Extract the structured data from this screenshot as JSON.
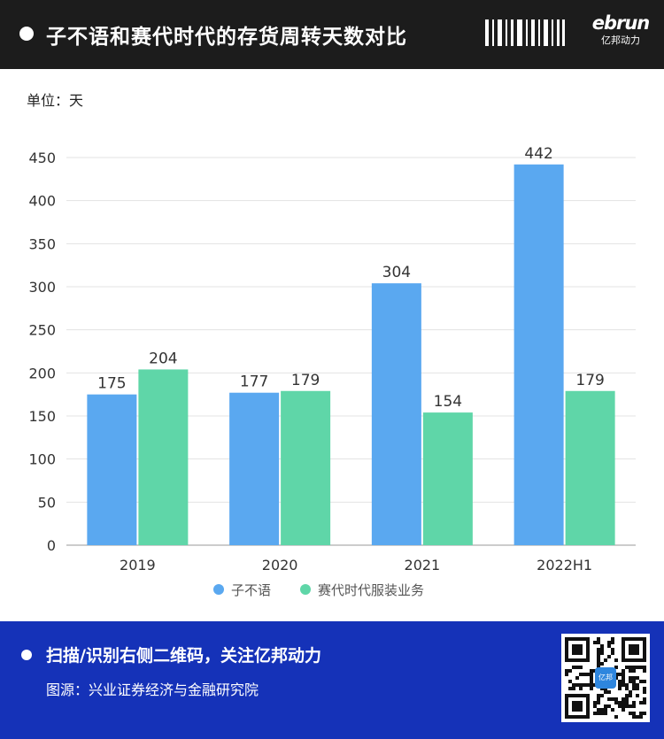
{
  "header": {
    "title": "子不语和赛代时代的存货周转天数对比",
    "logo_brand": "ebrun",
    "logo_sub": "亿邦动力"
  },
  "unit_label": "单位：天",
  "chart_data": {
    "type": "bar",
    "categories": [
      "2019",
      "2020",
      "2021",
      "2022H1"
    ],
    "series": [
      {
        "name": "子不语",
        "color": "#5aa8f0",
        "values": [
          175,
          177,
          304,
          442
        ]
      },
      {
        "name": "赛代时代服装业务",
        "color": "#5fd6a8",
        "values": [
          204,
          179,
          154,
          179
        ]
      }
    ],
    "ylim": [
      0,
      450
    ],
    "yticks": [
      0,
      50,
      100,
      150,
      200,
      250,
      300,
      350,
      400,
      450
    ],
    "grid": true,
    "legend": "bottom"
  },
  "footer": {
    "cta": "扫描/识别右侧二维码，关注亿邦动力",
    "source": "图源：兴业证券经济与金融研究院",
    "qr_badge": "亿邦"
  }
}
